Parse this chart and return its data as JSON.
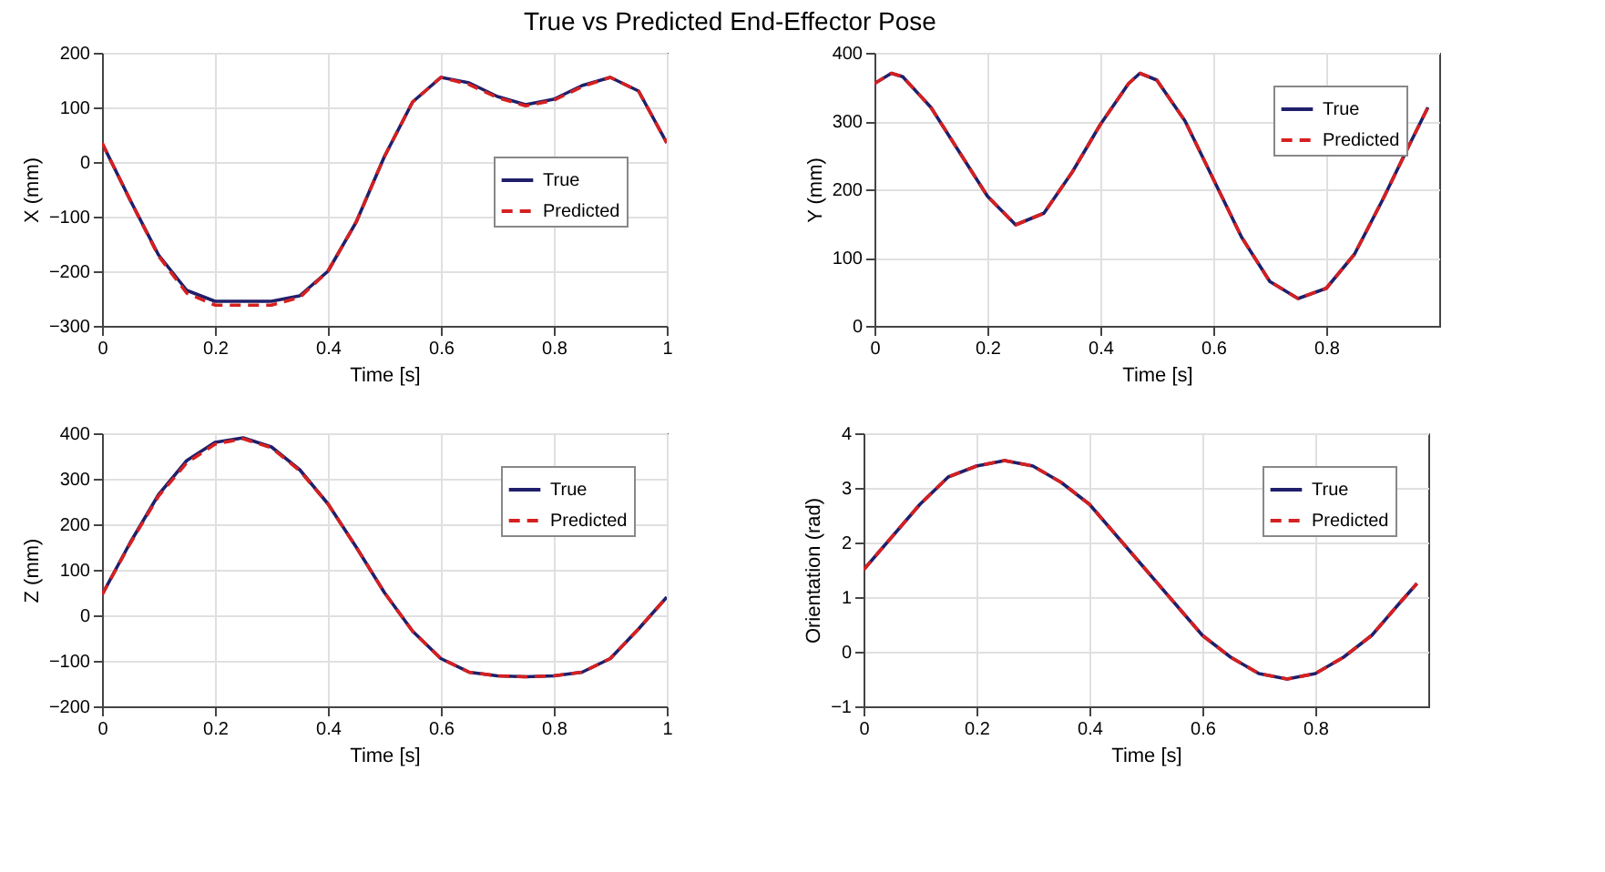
{
  "chart_data": [
    {
      "type": "line",
      "title": "True vs Predicted End-Effector Pose",
      "xlabel": "Time [s]",
      "ylabel": "X (mm)",
      "xlim": [
        0,
        1
      ],
      "ylim": [
        -300,
        200
      ],
      "xticks": [
        0,
        0.2,
        0.4,
        0.6,
        0.8,
        1
      ],
      "yticks": [
        -300,
        -200,
        -100,
        0,
        100,
        200
      ],
      "grid": true,
      "legend": "right",
      "x": [
        0,
        0.05,
        0.1,
        0.15,
        0.2,
        0.25,
        0.3,
        0.35,
        0.4,
        0.45,
        0.5,
        0.55,
        0.6,
        0.65,
        0.7,
        0.75,
        0.8,
        0.85,
        0.9,
        0.95,
        1
      ],
      "series": [
        {
          "name": "True",
          "color": "#1f1f6b",
          "line_style": "solid",
          "values": [
            35,
            -70,
            -170,
            -235,
            -255,
            -255,
            -255,
            -245,
            -200,
            -110,
            10,
            110,
            155,
            145,
            120,
            105,
            115,
            140,
            155,
            130,
            35
          ]
        },
        {
          "name": "Predicted",
          "color": "#d62020",
          "line_style": "dashed",
          "values": [
            35,
            -70,
            -172,
            -240,
            -262,
            -262,
            -262,
            -248,
            -200,
            -110,
            10,
            110,
            155,
            142,
            118,
            103,
            113,
            138,
            155,
            130,
            35
          ]
        }
      ]
    },
    {
      "type": "line",
      "xlabel": "Time [s]",
      "ylabel": "Y (mm)",
      "xlim": [
        0,
        1
      ],
      "ylim": [
        0,
        400
      ],
      "xticks": [
        0,
        0.2,
        0.4,
        0.6,
        0.8
      ],
      "yticks": [
        0,
        100,
        200,
        300,
        400
      ],
      "grid": true,
      "legend": "top right",
      "x": [
        0,
        0.03,
        0.05,
        0.1,
        0.15,
        0.2,
        0.25,
        0.3,
        0.35,
        0.4,
        0.45,
        0.47,
        0.5,
        0.55,
        0.6,
        0.65,
        0.7,
        0.75,
        0.8,
        0.85,
        0.9,
        0.95,
        0.98
      ],
      "series": [
        {
          "name": "True",
          "color": "#1f1f6b",
          "line_style": "solid",
          "values": [
            355,
            370,
            365,
            320,
            255,
            190,
            148,
            165,
            225,
            295,
            355,
            370,
            360,
            300,
            215,
            130,
            65,
            40,
            55,
            105,
            185,
            270,
            320
          ]
        },
        {
          "name": "Predicted",
          "color": "#d62020",
          "line_style": "dashed",
          "values": [
            355,
            370,
            365,
            320,
            255,
            190,
            148,
            165,
            225,
            295,
            355,
            370,
            360,
            300,
            215,
            130,
            65,
            40,
            55,
            105,
            185,
            270,
            320
          ]
        }
      ]
    },
    {
      "type": "line",
      "xlabel": "Time [s]",
      "ylabel": "Z (mm)",
      "xlim": [
        0,
        1
      ],
      "ylim": [
        -200,
        400
      ],
      "xticks": [
        0,
        0.2,
        0.4,
        0.6,
        0.8,
        1
      ],
      "yticks": [
        -200,
        -100,
        0,
        100,
        200,
        300,
        400
      ],
      "grid": true,
      "legend": "top right",
      "x": [
        0,
        0.05,
        0.1,
        0.15,
        0.2,
        0.25,
        0.3,
        0.35,
        0.4,
        0.45,
        0.5,
        0.55,
        0.6,
        0.65,
        0.7,
        0.75,
        0.8,
        0.85,
        0.9,
        0.95,
        1
      ],
      "series": [
        {
          "name": "True",
          "color": "#1f1f6b",
          "line_style": "solid",
          "values": [
            45,
            160,
            265,
            340,
            380,
            390,
            370,
            320,
            245,
            150,
            50,
            -35,
            -95,
            -125,
            -133,
            -135,
            -133,
            -125,
            -95,
            -30,
            40
          ]
        },
        {
          "name": "Predicted",
          "color": "#d62020",
          "line_style": "dashed",
          "values": [
            45,
            158,
            262,
            335,
            376,
            388,
            368,
            318,
            245,
            150,
            50,
            -35,
            -95,
            -125,
            -133,
            -135,
            -133,
            -125,
            -95,
            -30,
            40
          ]
        }
      ]
    },
    {
      "type": "line",
      "xlabel": "Time [s]",
      "ylabel": "Orientation (rad)",
      "xlim": [
        0,
        1
      ],
      "ylim": [
        -1,
        4
      ],
      "xticks": [
        0,
        0.2,
        0.4,
        0.6,
        0.8
      ],
      "yticks": [
        -1,
        0,
        1,
        2,
        3,
        4
      ],
      "grid": true,
      "legend": "top right",
      "x": [
        0,
        0.05,
        0.1,
        0.15,
        0.2,
        0.25,
        0.3,
        0.35,
        0.4,
        0.45,
        0.5,
        0.55,
        0.6,
        0.65,
        0.7,
        0.75,
        0.8,
        0.85,
        0.9,
        0.95,
        0.98
      ],
      "series": [
        {
          "name": "True",
          "color": "#1f1f6b",
          "line_style": "solid",
          "values": [
            1.5,
            2.1,
            2.7,
            3.2,
            3.4,
            3.5,
            3.4,
            3.1,
            2.7,
            2.1,
            1.5,
            0.9,
            0.3,
            -0.1,
            -0.4,
            -0.5,
            -0.4,
            -0.1,
            0.3,
            0.9,
            1.25
          ]
        },
        {
          "name": "Predicted",
          "color": "#d62020",
          "line_style": "dashed",
          "values": [
            1.5,
            2.1,
            2.7,
            3.2,
            3.4,
            3.5,
            3.4,
            3.1,
            2.7,
            2.1,
            1.5,
            0.9,
            0.3,
            -0.1,
            -0.4,
            -0.5,
            -0.4,
            -0.1,
            0.3,
            0.9,
            1.25
          ]
        }
      ]
    }
  ]
}
